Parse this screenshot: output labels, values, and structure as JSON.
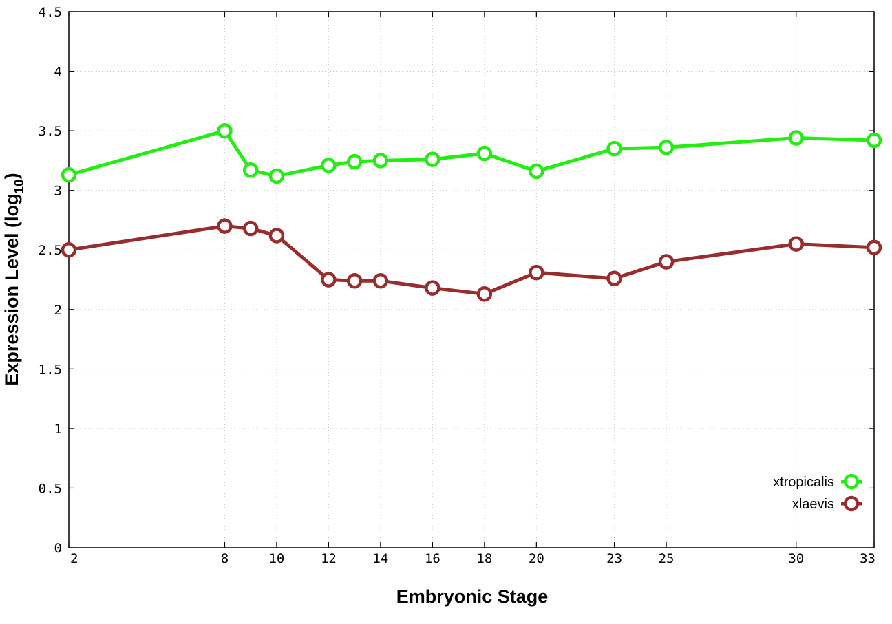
{
  "chart_data": {
    "type": "line",
    "xlabel": "Embryonic Stage",
    "ylabel": "Expression Level (log",
    "ylabel_sub": "10",
    "ylabel_close": ")",
    "x": [
      2,
      8,
      9,
      10,
      12,
      13,
      14,
      16,
      18,
      20,
      23,
      25,
      30,
      33
    ],
    "xticks": [
      2,
      8,
      10,
      12,
      14,
      16,
      18,
      20,
      23,
      25,
      30,
      33
    ],
    "xlim": [
      2,
      33
    ],
    "ylim": [
      0,
      4.5
    ],
    "yticks": [
      "0",
      "0.5",
      "1",
      "1.5",
      "2",
      "2.5",
      "3",
      "3.5",
      "4",
      "4.5"
    ],
    "grid": true,
    "legend_position": "bottom-right",
    "series": [
      {
        "name": "xtropicalis",
        "color": "#22ee11",
        "values": [
          3.13,
          3.5,
          3.17,
          3.12,
          3.21,
          3.24,
          3.25,
          3.26,
          3.31,
          3.16,
          3.35,
          3.36,
          3.44,
          3.42
        ]
      },
      {
        "name": "xlaevis",
        "color": "#992c2c",
        "values": [
          2.5,
          2.7,
          2.68,
          2.62,
          2.25,
          2.24,
          2.24,
          2.18,
          2.13,
          2.31,
          2.26,
          2.4,
          2.55,
          2.52
        ]
      }
    ]
  }
}
